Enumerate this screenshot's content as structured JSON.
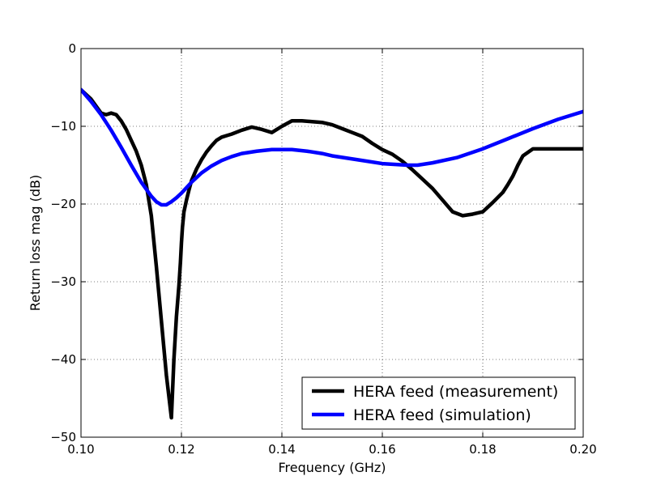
{
  "chart_data": {
    "type": "line",
    "title": "",
    "xlabel": "Frequency (GHz)",
    "ylabel": "Return loss mag (dB)",
    "xlim": [
      0.1,
      0.2
    ],
    "ylim": [
      -50,
      0
    ],
    "xticks": [
      0.1,
      0.12,
      0.14,
      0.16,
      0.18,
      0.2
    ],
    "xtick_labels": [
      "0.10",
      "0.12",
      "0.14",
      "0.16",
      "0.18",
      "0.20"
    ],
    "yticks": [
      0,
      -10,
      -20,
      -30,
      -40,
      -50
    ],
    "ytick_labels": [
      "0",
      "−10",
      "−20",
      "−30",
      "−40",
      "−50"
    ],
    "grid": true,
    "legend_position": "bottom-right",
    "series": [
      {
        "name": "HERA feed (measurement)",
        "color": "#000000",
        "x": [
          0.1,
          0.102,
          0.104,
          0.105,
          0.106,
          0.107,
          0.108,
          0.109,
          0.11,
          0.111,
          0.112,
          0.113,
          0.114,
          0.115,
          0.116,
          0.117,
          0.118,
          0.1185,
          0.119,
          0.1195,
          0.1198,
          0.12,
          0.1202,
          0.1205,
          0.121,
          0.1215,
          0.122,
          0.123,
          0.124,
          0.125,
          0.126,
          0.127,
          0.128,
          0.129,
          0.13,
          0.132,
          0.134,
          0.136,
          0.138,
          0.14,
          0.142,
          0.144,
          0.146,
          0.148,
          0.15,
          0.152,
          0.154,
          0.156,
          0.158,
          0.16,
          0.162,
          0.164,
          0.166,
          0.168,
          0.17,
          0.172,
          0.174,
          0.176,
          0.178,
          0.18,
          0.182,
          0.184,
          0.185,
          0.186,
          0.187,
          0.188,
          0.19,
          0.192,
          0.194,
          0.196,
          0.198,
          0.2
        ],
        "y": [
          -5.3,
          -6.5,
          -8.3,
          -8.5,
          -8.3,
          -8.5,
          -9.3,
          -10.4,
          -11.8,
          -13.2,
          -15.0,
          -17.5,
          -21.5,
          -28.0,
          -35.0,
          -42.0,
          -47.5,
          -40.0,
          -34.5,
          -30.5,
          -27.5,
          -25.0,
          -23.0,
          -21.0,
          -19.5,
          -18.2,
          -17.0,
          -15.5,
          -14.3,
          -13.3,
          -12.5,
          -11.8,
          -11.4,
          -11.2,
          -11.0,
          -10.5,
          -10.1,
          -10.4,
          -10.8,
          -10.0,
          -9.3,
          -9.3,
          -9.4,
          -9.5,
          -9.8,
          -10.3,
          -10.8,
          -11.3,
          -12.2,
          -13.0,
          -13.6,
          -14.5,
          -15.6,
          -16.8,
          -18.0,
          -19.5,
          -21.0,
          -21.5,
          -21.3,
          -21.0,
          -19.8,
          -18.5,
          -17.5,
          -16.4,
          -15.0,
          -13.8,
          -12.9,
          -12.9,
          -12.9,
          -12.9,
          -12.9,
          -12.9
        ]
      },
      {
        "name": "HERA feed (simulation)",
        "color": "#0000ff",
        "x": [
          0.1,
          0.102,
          0.104,
          0.106,
          0.108,
          0.11,
          0.112,
          0.114,
          0.115,
          0.116,
          0.117,
          0.118,
          0.119,
          0.12,
          0.122,
          0.124,
          0.126,
          0.128,
          0.13,
          0.132,
          0.135,
          0.138,
          0.14,
          0.142,
          0.145,
          0.148,
          0.15,
          0.155,
          0.16,
          0.165,
          0.167,
          0.17,
          0.175,
          0.18,
          0.185,
          0.19,
          0.195,
          0.2
        ],
        "y": [
          -5.3,
          -6.8,
          -8.5,
          -10.5,
          -12.7,
          -15.0,
          -17.2,
          -19.0,
          -19.7,
          -20.1,
          -20.1,
          -19.7,
          -19.2,
          -18.6,
          -17.2,
          -16.0,
          -15.1,
          -14.4,
          -13.9,
          -13.5,
          -13.2,
          -13.0,
          -13.0,
          -13.0,
          -13.2,
          -13.5,
          -13.8,
          -14.3,
          -14.8,
          -15.0,
          -15.0,
          -14.7,
          -14.0,
          -12.9,
          -11.6,
          -10.3,
          -9.1,
          -8.1
        ]
      }
    ]
  }
}
